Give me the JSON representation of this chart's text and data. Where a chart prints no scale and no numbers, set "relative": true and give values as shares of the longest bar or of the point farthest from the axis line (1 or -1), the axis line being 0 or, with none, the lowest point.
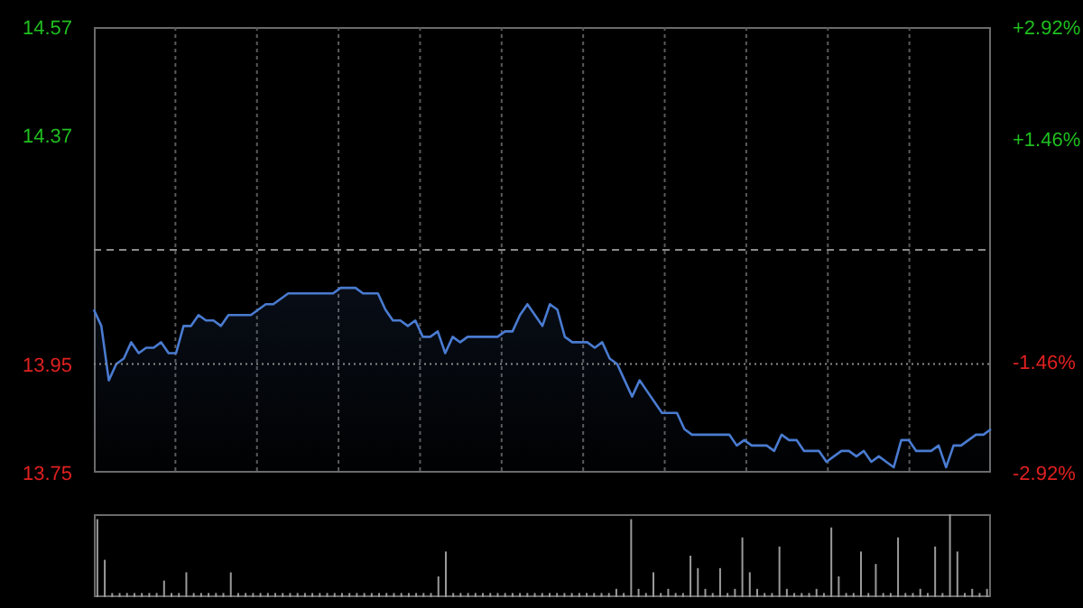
{
  "chart_data": [
    {
      "type": "area",
      "categories": [
        null,
        null,
        null,
        null,
        null,
        null,
        null,
        null,
        null,
        null,
        null,
        null,
        null,
        null,
        null,
        null,
        null,
        null,
        null,
        null,
        null,
        null,
        null,
        null,
        null,
        null,
        null,
        null,
        null,
        null,
        null,
        null,
        null,
        null,
        null,
        null,
        null,
        null,
        null,
        null,
        null,
        null,
        null,
        null,
        null,
        null,
        null,
        null,
        null,
        null,
        null,
        null,
        null,
        null,
        null,
        null,
        null,
        null,
        null,
        null,
        null,
        null,
        null,
        null,
        null,
        null,
        null,
        null,
        null,
        null,
        null,
        null,
        null,
        null,
        null,
        null,
        null,
        null,
        null,
        null,
        null,
        null,
        null,
        null,
        null,
        null,
        null,
        null,
        null,
        null,
        null,
        null,
        null,
        null,
        null,
        null,
        null,
        null,
        null,
        null,
        null,
        null,
        null,
        null,
        null,
        null,
        null,
        null,
        null,
        null,
        null,
        null,
        null,
        null,
        null,
        null,
        null,
        null,
        null,
        null,
        null
      ],
      "series": [
        {
          "color": "#4a7bd0",
          "values": [
            14.05,
            14.02,
            13.92,
            13.95,
            13.96,
            13.99,
            13.97,
            13.98,
            13.98,
            13.99,
            13.97,
            13.97,
            14.02,
            14.02,
            14.04,
            14.03,
            14.03,
            14.02,
            14.04,
            14.04,
            14.04,
            14.04,
            14.05,
            14.06,
            14.06,
            14.07,
            14.08,
            14.08,
            14.08,
            14.08,
            14.08,
            14.08,
            14.08,
            14.09,
            14.09,
            14.09,
            14.08,
            14.08,
            14.08,
            14.05,
            14.03,
            14.03,
            14.02,
            14.03,
            14.0,
            14.0,
            14.01,
            13.97,
            14.0,
            13.99,
            14.0,
            14.0,
            14.0,
            14.0,
            14.0,
            14.01,
            14.01,
            14.04,
            14.06,
            14.04,
            14.02,
            14.06,
            14.05,
            14.0,
            13.99,
            13.99,
            13.99,
            13.98,
            13.99,
            13.96,
            13.95,
            13.92,
            13.89,
            13.92,
            13.9,
            13.88,
            13.86,
            13.86,
            13.86,
            13.83,
            13.82,
            13.82,
            13.82,
            13.82,
            13.82,
            13.82,
            13.8,
            13.81,
            13.8,
            13.8,
            13.8,
            13.79,
            13.82,
            13.81,
            13.81,
            13.79,
            13.79,
            13.79,
            13.77,
            13.78,
            13.79,
            13.79,
            13.78,
            13.79,
            13.77,
            13.78,
            13.77,
            13.76,
            13.81,
            13.81,
            13.79,
            13.79,
            13.79,
            13.8,
            13.76,
            13.8,
            13.8,
            13.81,
            13.82,
            13.82,
            13.83
          ]
        }
      ],
      "ylim": [
        13.75,
        14.57
      ],
      "yticks": [
        13.75,
        13.95,
        14.37,
        14.57
      ],
      "y2lim": [
        -2.92,
        2.92
      ],
      "y2ticks": [
        {
          "value": -2.92,
          "label": "-2.92%"
        },
        {
          "value": -1.46,
          "label": "-1.46%"
        },
        {
          "value": 1.46,
          "label": "+1.46%"
        },
        {
          "value": 2.92,
          "label": "+2.92%"
        }
      ],
      "ref_lines": [
        {
          "axis": "y",
          "value": 14.16,
          "line_style": "dashed"
        },
        {
          "axis": "y",
          "value": 13.95,
          "line_style": "dotted"
        }
      ],
      "grid": "x",
      "legend": false,
      "marker": "none"
    },
    {
      "type": "bar",
      "relative": true,
      "categories": [
        null,
        null,
        null,
        null,
        null,
        null,
        null,
        null,
        null,
        null,
        null,
        null,
        null,
        null,
        null,
        null,
        null,
        null,
        null,
        null,
        null,
        null,
        null,
        null,
        null,
        null,
        null,
        null,
        null,
        null,
        null,
        null,
        null,
        null,
        null,
        null,
        null,
        null,
        null,
        null,
        null,
        null,
        null,
        null,
        null,
        null,
        null,
        null,
        null,
        null,
        null,
        null,
        null,
        null,
        null,
        null,
        null,
        null,
        null,
        null,
        null,
        null,
        null,
        null,
        null,
        null,
        null,
        null,
        null,
        null,
        null,
        null,
        null,
        null,
        null,
        null,
        null,
        null,
        null,
        null,
        null,
        null,
        null,
        null,
        null,
        null,
        null,
        null,
        null,
        null,
        null,
        null,
        null,
        null,
        null,
        null,
        null,
        null,
        null,
        null,
        null,
        null,
        null,
        null,
        null,
        null,
        null,
        null,
        null,
        null,
        null,
        null,
        null,
        null,
        null,
        null,
        null,
        null,
        null,
        null,
        null
      ],
      "series": [
        {
          "color": "#9a9a9a",
          "values": [
            0.94,
            0.45,
            0.05,
            0.05,
            0.05,
            0.05,
            0.05,
            0.05,
            0.05,
            0.2,
            0.05,
            0.05,
            0.3,
            0.05,
            0.05,
            0.05,
            0.05,
            0.05,
            0.3,
            0.05,
            0.05,
            0.05,
            0.05,
            0.05,
            0.05,
            0.05,
            0.05,
            0.05,
            0.05,
            0.05,
            0.05,
            0.05,
            0.05,
            0.05,
            0.05,
            0.05,
            0.05,
            0.05,
            0.05,
            0.05,
            0.05,
            0.05,
            0.05,
            0.05,
            0.05,
            0.05,
            0.25,
            0.55,
            0.05,
            0.05,
            0.05,
            0.05,
            0.05,
            0.05,
            0.05,
            0.05,
            0.05,
            0.05,
            0.05,
            0.05,
            0.05,
            0.05,
            0.05,
            0.05,
            0.05,
            0.05,
            0.05,
            0.05,
            0.05,
            0.05,
            0.1,
            0.05,
            0.94,
            0.1,
            0.05,
            0.3,
            0.05,
            0.1,
            0.05,
            0.05,
            0.5,
            0.35,
            0.1,
            0.05,
            0.35,
            0.05,
            0.1,
            0.72,
            0.3,
            0.1,
            0.05,
            0.05,
            0.61,
            0.1,
            0.05,
            0.05,
            0.05,
            0.1,
            0.05,
            0.84,
            0.25,
            0.05,
            0.05,
            0.55,
            0.05,
            0.4,
            0.05,
            0.05,
            0.72,
            0.05,
            0.05,
            0.1,
            0.05,
            0.61,
            0.05,
            1,
            0.55,
            0.05,
            0.1,
            0.05,
            0.1
          ]
        }
      ],
      "legend": false
    }
  ]
}
